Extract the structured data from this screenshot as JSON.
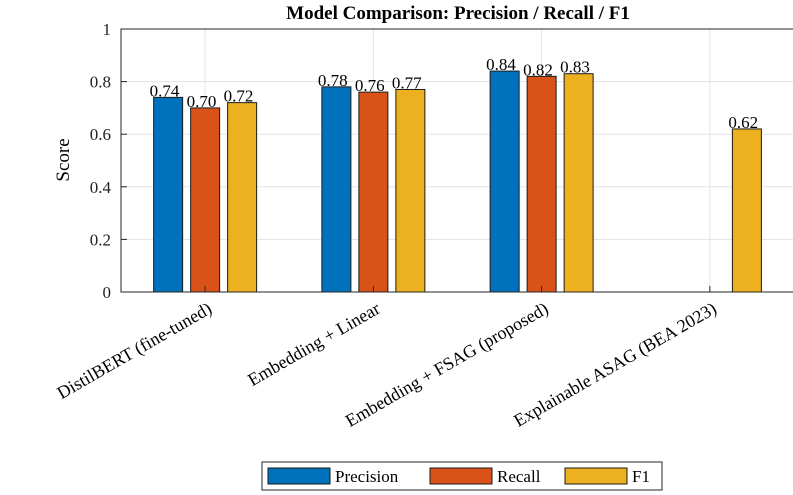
{
  "chart_data": {
    "type": "bar",
    "title": "Model Comparison: Precision / Recall / F1",
    "xlabel": "",
    "ylabel": "Score",
    "ylim": [
      0,
      1
    ],
    "yticks": [
      "0",
      "0.2",
      "0.4",
      "0.6",
      "0.8",
      "1"
    ],
    "grid": true,
    "legend": "bottom",
    "categories": [
      "DistilBERT (fine-tuned)",
      "Embedding + Linear",
      "Embedding + FSAG (proposed)",
      "Explainable ASAG (BEA 2023)"
    ],
    "series": [
      {
        "name": "Precision",
        "color": "#0072BD",
        "values": [
          0.74,
          0.78,
          0.84,
          null
        ],
        "labels": [
          "0.74",
          "0.78",
          "0.84",
          ""
        ]
      },
      {
        "name": "Recall",
        "color": "#D95319",
        "values": [
          0.7,
          0.76,
          0.82,
          null
        ],
        "labels": [
          "0.70",
          "0.76",
          "0.82",
          ""
        ]
      },
      {
        "name": "F1",
        "color": "#EDB120",
        "values": [
          0.72,
          0.77,
          0.83,
          0.62
        ],
        "labels": [
          "0.72",
          "0.77",
          "0.83",
          "0.62"
        ]
      }
    ]
  }
}
